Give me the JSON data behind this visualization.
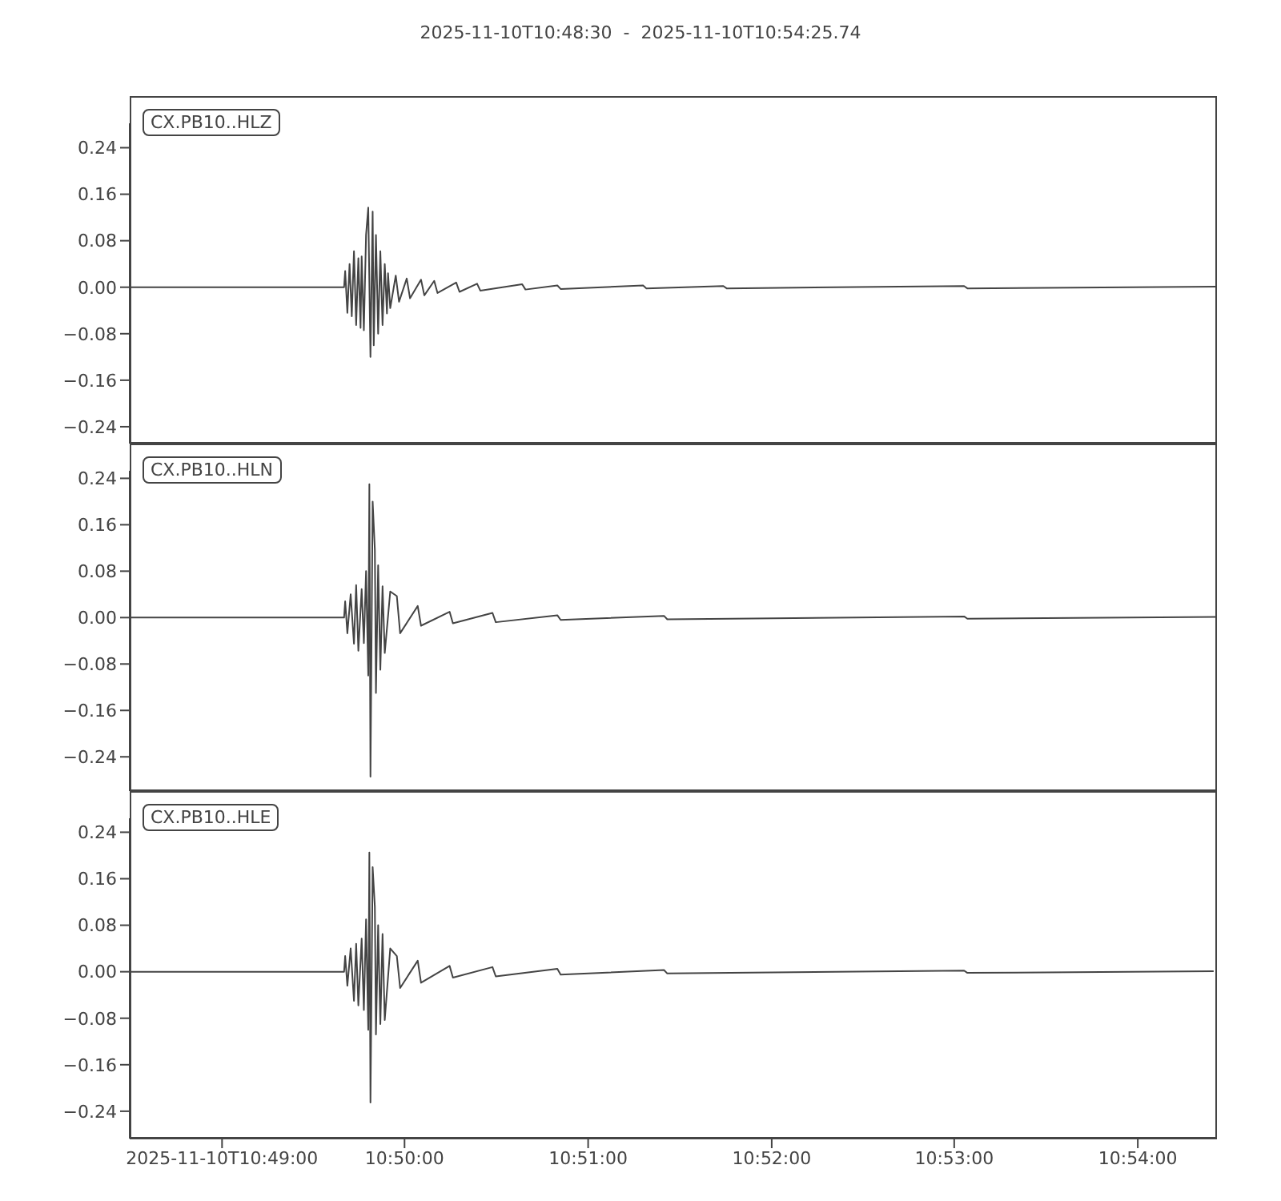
{
  "chart_data": [
    {
      "type": "line",
      "title": "2025-11-10T10:48:30  -  2025-11-10T10:54:25.74",
      "legend": "top left",
      "tick_labels": "y",
      "grid": false,
      "marker": "none",
      "line_style": "solid",
      "x": [
        10.8083,
        10.8278,
        10.8279,
        10.8281,
        10.8283,
        10.8285,
        10.8287,
        10.8289,
        10.8291,
        10.8293,
        10.8294,
        10.8296,
        10.8298,
        10.83,
        10.8302,
        10.8304,
        10.8305,
        10.8307,
        10.8309,
        10.8311,
        10.8313,
        10.8315,
        10.8317,
        10.8318,
        10.832,
        10.8325,
        10.8328,
        10.8335,
        10.8338,
        10.8348,
        10.8351,
        10.836,
        10.8363,
        10.838,
        10.8383,
        10.8399,
        10.8402,
        10.844,
        10.8443,
        10.8472,
        10.8475,
        10.855,
        10.8553,
        10.8623,
        10.8626,
        10.8842,
        10.8845,
        10.9072
      ],
      "series": [
        {
          "name": "CX.PB10..HLZ",
          "color": "#444444",
          "values": [
            0,
            0,
            0.028,
            -0.044,
            0.04,
            -0.05,
            0.062,
            -0.065,
            0.05,
            -0.07,
            0.053,
            -0.074,
            0.09,
            0.137,
            -0.12,
            0.13,
            -0.1,
            0.09,
            -0.08,
            0.062,
            -0.065,
            0.04,
            -0.045,
            0.024,
            -0.036,
            0.02,
            -0.025,
            0.015,
            -0.019,
            0.013,
            -0.014,
            0.011,
            -0.01,
            0.008,
            -0.008,
            0.006,
            -0.006,
            0.005,
            -0.004,
            0.003,
            -0.003,
            0.003,
            -0.002,
            0.002,
            -0.002,
            0.002,
            -0.002,
            0.001
          ]
        }
      ],
      "xlim": [
        10.8083,
        10.9072
      ],
      "ylim": [
        -0.269,
        0.282
      ],
      "yticks": [
        {
          "value": -0.24,
          "label": "−0.24"
        },
        {
          "value": -0.16,
          "label": "−0.16"
        },
        {
          "value": -0.08,
          "label": "−0.08"
        },
        {
          "value": 0,
          "label": "0.00"
        },
        {
          "value": 0.08,
          "label": "0.08"
        },
        {
          "value": 0.16,
          "label": "0.16"
        },
        {
          "value": 0.24,
          "label": "0.24"
        }
      ]
    },
    {
      "type": "line",
      "legend": "top left",
      "tick_labels": "y",
      "grid": false,
      "marker": "none",
      "line_style": "solid",
      "x": [
        10.8083,
        10.8278,
        10.8279,
        10.8281,
        10.8284,
        10.8287,
        10.8289,
        10.8291,
        10.8294,
        10.8296,
        10.8298,
        10.83,
        10.8301,
        10.8302,
        10.8304,
        10.8306,
        10.8307,
        10.8309,
        10.8311,
        10.8313,
        10.8315,
        10.832,
        10.8326,
        10.8329,
        10.8345,
        10.8348,
        10.8374,
        10.8377,
        10.8413,
        10.8416,
        10.8472,
        10.8475,
        10.8569,
        10.8572,
        10.8842,
        10.8845,
        10.9072
      ],
      "series": [
        {
          "name": "CX.PB10..HLN",
          "color": "#444444",
          "values": [
            0,
            0,
            0.028,
            -0.027,
            0.04,
            -0.045,
            0.056,
            -0.057,
            0.049,
            -0.044,
            0.08,
            -0.1,
            0.23,
            -0.274,
            0.2,
            0.117,
            -0.13,
            0.09,
            -0.09,
            0.054,
            -0.061,
            0.045,
            0.037,
            -0.027,
            0.02,
            -0.014,
            0.01,
            -0.01,
            0.008,
            -0.008,
            0.004,
            -0.004,
            0.003,
            -0.003,
            0.002,
            -0.002,
            0.001
          ]
        }
      ],
      "xlim": [
        10.8083,
        10.9072
      ],
      "ylim": [
        -0.299,
        0.253
      ],
      "yticks": [
        {
          "value": -0.24,
          "label": "−0.24"
        },
        {
          "value": -0.16,
          "label": "−0.16"
        },
        {
          "value": -0.08,
          "label": "−0.08"
        },
        {
          "value": 0,
          "label": "0.00"
        },
        {
          "value": 0.08,
          "label": "0.08"
        },
        {
          "value": 0.16,
          "label": "0.16"
        },
        {
          "value": 0.24,
          "label": "0.24"
        }
      ]
    },
    {
      "type": "line",
      "legend": "top left",
      "grid": false,
      "marker": "none",
      "line_style": "solid",
      "x": [
        10.8083,
        10.8278,
        10.8279,
        10.8281,
        10.8284,
        10.8287,
        10.8289,
        10.8291,
        10.8294,
        10.8296,
        10.8298,
        10.83,
        10.8301,
        10.8302,
        10.8304,
        10.8306,
        10.8307,
        10.8309,
        10.8311,
        10.8313,
        10.8315,
        10.832,
        10.8326,
        10.8329,
        10.8345,
        10.8348,
        10.8374,
        10.8377,
        10.8413,
        10.8416,
        10.8472,
        10.8475,
        10.8569,
        10.8572,
        10.8842,
        10.8845,
        10.9069
      ],
      "series": [
        {
          "name": "CX.PB10..HLE",
          "color": "#444444",
          "values": [
            0,
            0,
            0.027,
            -0.024,
            0.04,
            -0.05,
            0.048,
            -0.058,
            0.057,
            -0.066,
            0.09,
            -0.1,
            0.205,
            -0.225,
            0.18,
            0.112,
            -0.108,
            0.08,
            -0.09,
            0.065,
            -0.083,
            0.04,
            0.027,
            -0.028,
            0.019,
            -0.019,
            0.01,
            -0.01,
            0.008,
            -0.008,
            0.005,
            -0.005,
            0.003,
            -0.003,
            0.002,
            -0.002,
            0.001
          ]
        }
      ],
      "xlim": [
        10.8083,
        10.9072
      ],
      "xticks": [
        {
          "value": 10.8167,
          "label": "2025-11-10T10:49:00"
        },
        {
          "value": 10.8333,
          "label": "10:50:00"
        },
        {
          "value": 10.85,
          "label": "10:51:00"
        },
        {
          "value": 10.8667,
          "label": "10:52:00"
        },
        {
          "value": 10.8833,
          "label": "10:53:00"
        },
        {
          "value": 10.9,
          "label": "10:54:00"
        }
      ],
      "ylim": [
        -0.287,
        0.264
      ],
      "yticks": [
        {
          "value": -0.24,
          "label": "−0.24"
        },
        {
          "value": -0.16,
          "label": "−0.16"
        },
        {
          "value": -0.08,
          "label": "−0.08"
        },
        {
          "value": 0,
          "label": "0.00"
        },
        {
          "value": 0.08,
          "label": "0.08"
        },
        {
          "value": 0.16,
          "label": "0.16"
        },
        {
          "value": 0.24,
          "label": "0.24"
        }
      ]
    }
  ]
}
